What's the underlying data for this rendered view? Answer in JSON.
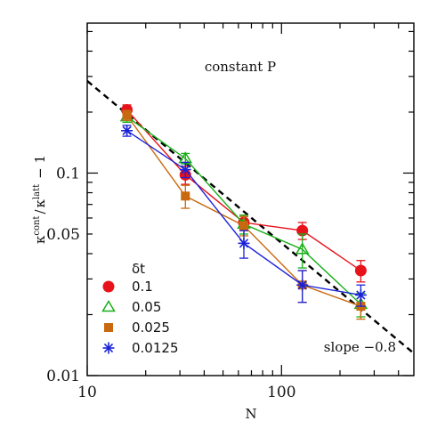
{
  "chart_data": {
    "type": "scatter",
    "title": "",
    "xlabel": "N",
    "ylabel": "κcont / κlatt − 1",
    "ylabel_parts": {
      "kappa": "κ",
      "sup_cont": "cont",
      "slash": "/",
      "sup_latt": "latt",
      "minus_one": "− 1"
    },
    "xscale": "log",
    "yscale": "log",
    "xlim": [
      10,
      480
    ],
    "ylim": [
      0.01,
      0.55
    ],
    "x_ticks": [
      {
        "value": 10,
        "label": "10"
      },
      {
        "value": 100,
        "label": "100"
      }
    ],
    "y_ticks": [
      {
        "value": 0.01,
        "label": "0.01"
      },
      {
        "value": 0.05,
        "label": "0.05"
      },
      {
        "value": 0.1,
        "label": "0.1"
      }
    ],
    "annotations": [
      {
        "text": "constant P",
        "position": "top-center"
      },
      {
        "text": "slope −0.8",
        "position": "bottom-right"
      }
    ],
    "fit_line": {
      "name": "slope −0.8",
      "slope": -0.8,
      "through": [
        10,
        0.285
      ],
      "style": "dashed",
      "color": "#000000"
    },
    "legend": {
      "title": "δt",
      "position": "bottom-left"
    },
    "x": [
      16,
      32,
      64,
      128,
      256
    ],
    "series": [
      {
        "name": "0.1",
        "marker": "filled-circle",
        "color": "#e8121b",
        "y": [
          0.205,
          0.098,
          0.057,
          0.052,
          0.033
        ],
        "err_low": [
          0.012,
          0.01,
          0.005,
          0.005,
          0.004
        ],
        "err_high": [
          0.012,
          0.01,
          0.005,
          0.005,
          0.004
        ]
      },
      {
        "name": "0.05",
        "marker": "open-triangle",
        "color": "#18b018",
        "y": [
          0.19,
          0.118,
          0.056,
          0.042,
          0.0225
        ],
        "err_low": [
          0.012,
          0.007,
          0.006,
          0.008,
          0.003
        ],
        "err_high": [
          0.012,
          0.007,
          0.006,
          0.008,
          0.003
        ]
      },
      {
        "name": "0.025",
        "marker": "filled-square",
        "color": "#c8690f",
        "y": [
          0.193,
          0.077,
          0.055,
          0.028,
          0.022
        ],
        "err_low": [
          0.011,
          0.01,
          0.006,
          0.005,
          0.003
        ],
        "err_high": [
          0.011,
          0.01,
          0.006,
          0.005,
          0.003
        ]
      },
      {
        "name": "0.0125",
        "marker": "asterisk",
        "color": "#1a22d8",
        "y": [
          0.162,
          0.104,
          0.045,
          0.028,
          0.025
        ],
        "err_low": [
          0.01,
          0.009,
          0.007,
          0.005,
          0.003
        ],
        "err_high": [
          0.01,
          0.009,
          0.007,
          0.005,
          0.003
        ]
      }
    ]
  }
}
